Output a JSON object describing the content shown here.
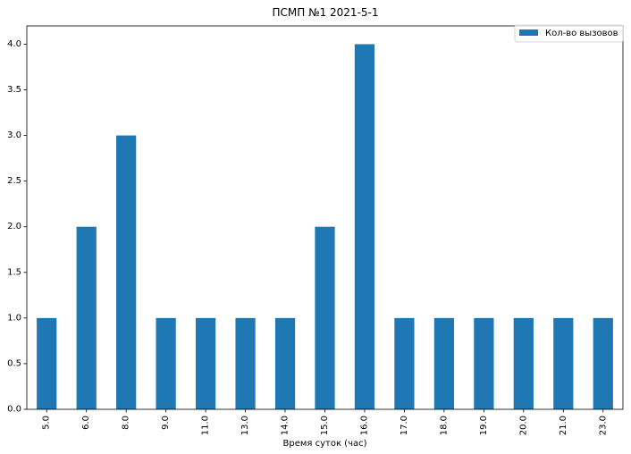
{
  "chart_data": {
    "type": "bar",
    "title": "ПСМП №1 2021-5-1",
    "xlabel": "Время суток (час)",
    "ylabel": "",
    "categories": [
      "5.0",
      "6.0",
      "8.0",
      "9.0",
      "11.0",
      "13.0",
      "14.0",
      "15.0",
      "16.0",
      "17.0",
      "18.0",
      "19.0",
      "20.0",
      "21.0",
      "23.0"
    ],
    "series": [
      {
        "name": "Кол-во вызовов",
        "values": [
          1,
          2,
          3,
          1,
          1,
          1,
          1,
          2,
          4,
          1,
          1,
          1,
          1,
          1,
          1
        ]
      }
    ],
    "ylim": [
      0,
      4.2
    ],
    "yticks": [
      "0.0",
      "0.5",
      "1.0",
      "1.5",
      "2.0",
      "2.5",
      "3.0",
      "3.5",
      "4.0"
    ],
    "legend": "top-right",
    "grid": false,
    "color": "#1f77b4"
  }
}
